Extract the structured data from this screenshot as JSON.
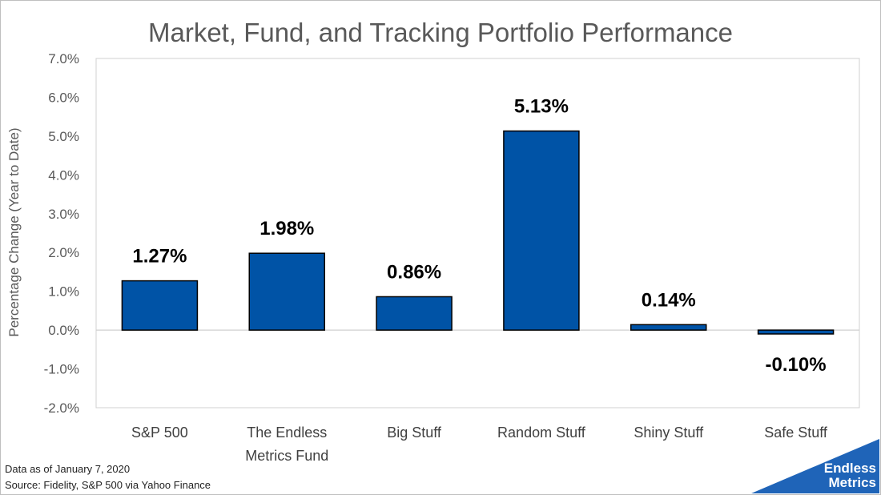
{
  "chart_data": {
    "type": "bar",
    "title": "Market, Fund, and Tracking Portfolio Performance",
    "ylabel": "Percentage Change (Year to Date)",
    "xlabel": "",
    "categories": [
      "S&P 500",
      "The Endless\nMetrics Fund",
      "Big Stuff",
      "Random Stuff",
      "Shiny Stuff",
      "Safe Stuff"
    ],
    "values": [
      1.27,
      1.98,
      0.86,
      5.13,
      0.14,
      -0.1
    ],
    "data_labels": [
      "1.27%",
      "1.98%",
      "0.86%",
      "5.13%",
      "0.14%",
      "-0.10%"
    ],
    "ylim": [
      -2.0,
      7.0
    ],
    "yticks": [
      -2.0,
      -1.0,
      0.0,
      1.0,
      2.0,
      3.0,
      4.0,
      5.0,
      6.0,
      7.0
    ],
    "ytick_labels": [
      "-2.0%",
      "-1.0%",
      "0.0%",
      "1.0%",
      "2.0%",
      "3.0%",
      "4.0%",
      "5.0%",
      "6.0%",
      "7.0%"
    ],
    "grid": false,
    "legend": "none",
    "bar_color": "#0053a6"
  },
  "footnotes": {
    "date": "Data as of January 7, 2020",
    "source": "Source: Fidelity, S&P 500 via Yahoo Finance"
  },
  "logo": {
    "line1": "Endless",
    "line2": "Metrics",
    "color": "#1f64b8"
  }
}
